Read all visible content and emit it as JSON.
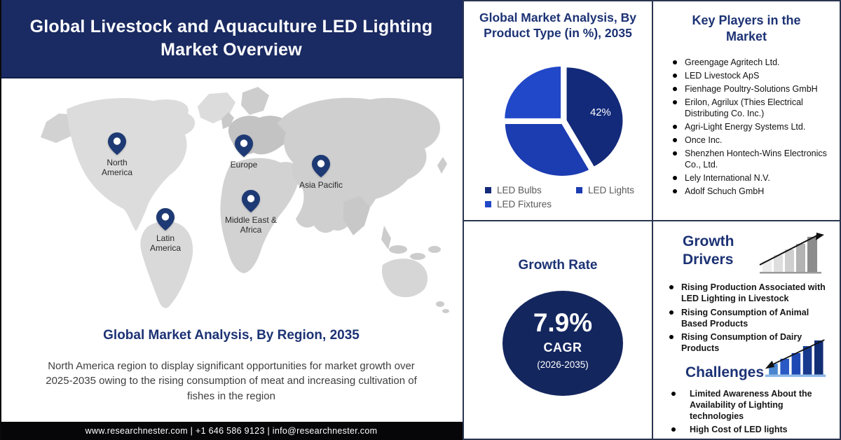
{
  "banner": {
    "title": "Global Livestock and Aquaculture LED Lighting Market Overview"
  },
  "map": {
    "regions": [
      {
        "label": "North America"
      },
      {
        "label": "Europe"
      },
      {
        "label": "Asia Pacific"
      },
      {
        "label": "Middle East & Africa"
      },
      {
        "label": "Latin America"
      }
    ]
  },
  "region_section": {
    "heading": "Global Market Analysis, By Region, 2035",
    "description": "North America region to display significant opportunities for market growth over 2025-2035 owing to the rising consumption of meat and increasing cultivation of fishes in the region"
  },
  "footer": {
    "text": "www.researchnester.com | +1 646 586 9123 | info@researchnester.com"
  },
  "chart_data": {
    "type": "pie",
    "title": "Global Market Analysis, By Product Type (in %), 2035",
    "labels": [
      "LED Bulbs",
      "LED Lights",
      "LED Fixtures"
    ],
    "values": [
      42,
      33,
      25
    ],
    "value_labels": [
      "42%",
      "",
      ""
    ],
    "colors": [
      "#132a7a",
      "#1c3cb2",
      "#2148c8"
    ],
    "legend_position": "bottom"
  },
  "growth_rate": {
    "heading": "Growth Rate",
    "value": "7.9%",
    "label": "CAGR",
    "period": "(2026-2035)"
  },
  "key_players": {
    "heading": "Key Players in the Market",
    "items": [
      "Greengage Agritech Ltd.",
      "LED Livestock ApS",
      "Fienhage Poultry-Solutions GmbH",
      "Erilon, Agrilux (Thies Electrical Distributing Co. Inc.)",
      "Agri-Light Energy Systems Ltd.",
      "Once Inc.",
      "Shenzhen Hontech-Wins Electronics Co., Ltd.",
      "Lely International N.V.",
      "Adolf Schuch GmbH"
    ]
  },
  "growth_drivers": {
    "heading": "Growth Drivers",
    "items": [
      "Rising Production Associated with LED Lighting in Livestock",
      "Rising Consumption of Animal Based Products",
      "Rising Consumption of Dairy Products"
    ]
  },
  "challenges": {
    "heading": "Challenges",
    "items": [
      "Limited Awareness About the Availability of Lighting technologies",
      "High Cost of LED lights"
    ]
  },
  "colors": {
    "banner_bg": "#1a2a62",
    "heading": "#1c3274",
    "accent_circle": "#14265e",
    "footer_bg": "#060608",
    "pin": "#1e3a74"
  }
}
